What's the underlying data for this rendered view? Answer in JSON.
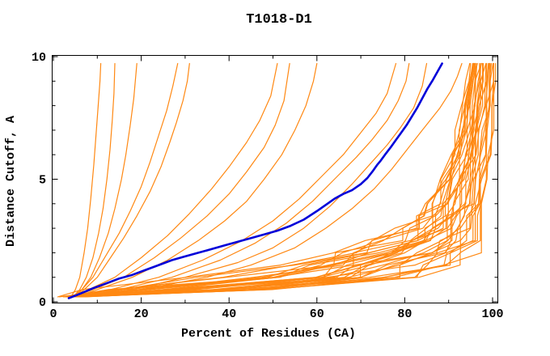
{
  "window": {
    "background": "#ffffff"
  },
  "chart_data": {
    "type": "line",
    "title": "T1018-D1",
    "xlabel": "Percent of Residues (CA)",
    "ylabel": "Distance Cutoff, A",
    "xlim": [
      0,
      101.3
    ],
    "ylim": [
      0,
      10.07
    ],
    "grid": "off",
    "legend": "none",
    "x_axis": {
      "major_ticks": [
        0,
        20,
        40,
        60,
        80,
        100
      ],
      "major_labels": [
        "0",
        "20",
        "40",
        "60",
        "80",
        "100"
      ],
      "minor_ticks": [
        10,
        30,
        50,
        70,
        90
      ]
    },
    "y_axis": {
      "major_ticks": [
        0,
        5,
        10
      ],
      "major_labels": [
        "0",
        "5",
        "10"
      ],
      "minor_ticks": [
        1,
        2,
        3,
        4,
        6,
        7,
        8,
        9
      ]
    },
    "colors": {
      "models": "#ff8812",
      "highlighted_model": "#0000d9",
      "axis": "#000000"
    },
    "highlighted_curve": {
      "name": "best-model-curve",
      "color": "blue",
      "points": [
        [
          3.5,
          0.15
        ],
        [
          5,
          0.25
        ],
        [
          7,
          0.4
        ],
        [
          9,
          0.55
        ],
        [
          12,
          0.75
        ],
        [
          15,
          0.95
        ],
        [
          18,
          1.1
        ],
        [
          21,
          1.3
        ],
        [
          24,
          1.5
        ],
        [
          27,
          1.7
        ],
        [
          30,
          1.85
        ],
        [
          33,
          2.0
        ],
        [
          36,
          2.15
        ],
        [
          39,
          2.3
        ],
        [
          42,
          2.45
        ],
        [
          45,
          2.6
        ],
        [
          48,
          2.75
        ],
        [
          51,
          2.9
        ],
        [
          54,
          3.1
        ],
        [
          57,
          3.35
        ],
        [
          60,
          3.7
        ],
        [
          62,
          3.95
        ],
        [
          64,
          4.2
        ],
        [
          66,
          4.4
        ],
        [
          68,
          4.55
        ],
        [
          70,
          4.8
        ],
        [
          71.5,
          5.05
        ],
        [
          72.8,
          5.35
        ],
        [
          73.8,
          5.6
        ],
        [
          74.5,
          5.75
        ],
        [
          75.5,
          6.0
        ],
        [
          76.8,
          6.3
        ],
        [
          78,
          6.6
        ],
        [
          79.2,
          6.9
        ],
        [
          80.4,
          7.2
        ],
        [
          81.6,
          7.55
        ],
        [
          82.8,
          7.9
        ],
        [
          84,
          8.3
        ],
        [
          85.2,
          8.7
        ],
        [
          86.4,
          9.05
        ],
        [
          87.5,
          9.4
        ],
        [
          88.5,
          9.72
        ]
      ]
    },
    "model_curves": [
      {
        "points": [
          [
            4,
            0.2
          ],
          [
            5,
            0.5
          ],
          [
            6,
            1
          ],
          [
            7,
            2
          ],
          [
            7.8,
            3
          ],
          [
            8.5,
            4.2
          ],
          [
            9.2,
            5.6
          ],
          [
            9.7,
            6.8
          ],
          [
            10.2,
            8
          ],
          [
            10.6,
            9
          ],
          [
            10.8,
            9.72
          ]
        ]
      },
      {
        "points": [
          [
            4.5,
            0.2
          ],
          [
            6,
            0.5
          ],
          [
            7.5,
            1
          ],
          [
            9,
            1.8
          ],
          [
            10.3,
            2.8
          ],
          [
            11.3,
            3.8
          ],
          [
            12.2,
            5
          ],
          [
            12.9,
            6.2
          ],
          [
            13.4,
            7.4
          ],
          [
            13.8,
            8.5
          ],
          [
            14,
            9.72
          ]
        ]
      },
      {
        "points": [
          [
            5,
            0.2
          ],
          [
            6.5,
            0.5
          ],
          [
            8.5,
            1
          ],
          [
            10.5,
            1.8
          ],
          [
            12.5,
            2.8
          ],
          [
            14,
            3.8
          ],
          [
            15.5,
            5
          ],
          [
            16.5,
            6
          ],
          [
            17.5,
            7.2
          ],
          [
            18.3,
            8.3
          ],
          [
            19,
            9.72
          ]
        ]
      },
      {
        "points": [
          [
            4.5,
            0.2
          ],
          [
            6.5,
            0.5
          ],
          [
            9,
            1
          ],
          [
            12,
            1.9
          ],
          [
            15,
            2.8
          ],
          [
            17.5,
            3.7
          ],
          [
            20,
            4.7
          ],
          [
            22,
            5.7
          ],
          [
            24,
            6.8
          ],
          [
            25.8,
            7.8
          ],
          [
            27.2,
            8.8
          ],
          [
            28.3,
            9.72
          ]
        ]
      },
      {
        "points": [
          [
            5,
            0.2
          ],
          [
            7,
            0.5
          ],
          [
            10,
            1
          ],
          [
            13,
            1.8
          ],
          [
            16,
            2.6
          ],
          [
            19,
            3.5
          ],
          [
            22,
            4.5
          ],
          [
            24.5,
            5.5
          ],
          [
            26.5,
            6.5
          ],
          [
            28,
            7.3
          ],
          [
            29.5,
            8.2
          ],
          [
            30.5,
            9
          ],
          [
            31,
            9.72
          ]
        ]
      },
      {
        "points": [
          [
            4,
            0.2
          ],
          [
            8,
            0.5
          ],
          [
            14,
            1
          ],
          [
            20,
            1.8
          ],
          [
            26,
            2.7
          ],
          [
            31,
            3.6
          ],
          [
            36,
            4.6
          ],
          [
            40,
            5.5
          ],
          [
            44,
            6.5
          ],
          [
            47,
            7.4
          ],
          [
            49.5,
            8.4
          ],
          [
            51,
            9.72
          ]
        ]
      },
      {
        "points": [
          [
            4.5,
            0.2
          ],
          [
            9,
            0.5
          ],
          [
            16,
            1
          ],
          [
            23,
            1.8
          ],
          [
            29,
            2.6
          ],
          [
            35,
            3.5
          ],
          [
            40,
            4.4
          ],
          [
            44,
            5.3
          ],
          [
            48,
            6.3
          ],
          [
            50.5,
            7.2
          ],
          [
            52.5,
            8.2
          ],
          [
            53.8,
            9.72
          ]
        ]
      },
      {
        "points": [
          [
            5,
            0.2
          ],
          [
            10,
            0.5
          ],
          [
            18,
            1
          ],
          [
            26,
            1.7
          ],
          [
            33,
            2.5
          ],
          [
            39,
            3.3
          ],
          [
            44,
            4.1
          ],
          [
            48,
            5
          ],
          [
            52,
            6
          ],
          [
            55,
            7
          ],
          [
            57.5,
            8
          ],
          [
            59.2,
            9
          ],
          [
            60,
            9.72
          ]
        ]
      },
      {
        "points": [
          [
            5.5,
            0.2
          ],
          [
            13,
            0.5
          ],
          [
            24,
            1
          ],
          [
            34,
            1.7
          ],
          [
            43,
            2.5
          ],
          [
            50,
            3.3
          ],
          [
            56,
            4.2
          ],
          [
            61,
            5.1
          ],
          [
            66,
            6
          ],
          [
            70,
            6.9
          ],
          [
            73.5,
            7.7
          ],
          [
            76,
            8.5
          ],
          [
            78,
            9.72
          ]
        ]
      },
      {
        "points": [
          [
            6,
            0.2
          ],
          [
            15,
            0.5
          ],
          [
            27,
            1
          ],
          [
            38,
            1.7
          ],
          [
            46,
            2.4
          ],
          [
            53,
            3.2
          ],
          [
            59,
            4.1
          ],
          [
            64,
            5
          ],
          [
            69,
            5.9
          ],
          [
            72.5,
            6.6
          ],
          [
            76,
            7.4
          ],
          [
            78.5,
            8.2
          ],
          [
            80.3,
            9
          ],
          [
            81,
            9.72
          ]
        ]
      },
      {
        "points": [
          [
            5,
            0.2
          ],
          [
            18,
            0.5
          ],
          [
            30,
            1
          ],
          [
            42,
            1.6
          ],
          [
            50,
            2.2
          ],
          [
            57,
            3
          ],
          [
            63,
            3.9
          ],
          [
            68,
            4.8
          ],
          [
            72,
            5.6
          ],
          [
            76,
            6.4
          ],
          [
            79,
            7.1
          ],
          [
            82,
            7.9
          ],
          [
            84,
            8.8
          ],
          [
            85,
            9.72
          ]
        ]
      },
      {
        "points": [
          [
            6,
            0.2
          ],
          [
            20,
            0.5
          ],
          [
            35,
            1
          ],
          [
            45,
            1.5
          ],
          [
            55,
            2.2
          ],
          [
            62,
            3
          ],
          [
            68,
            3.8
          ],
          [
            73,
            4.6
          ],
          [
            77,
            5.4
          ],
          [
            80.5,
            6.2
          ],
          [
            84,
            7
          ],
          [
            88,
            7.9
          ],
          [
            90.5,
            8.6
          ],
          [
            92,
            9.2
          ],
          [
            93,
            9.72
          ]
        ]
      }
    ],
    "bundle": {
      "description": "dense band of similar model curves hugging the lower right",
      "count": 34,
      "color": "orange",
      "cutoffs": [
        0.2,
        0.5,
        1,
        1.5,
        2,
        2.5,
        3,
        3.5,
        4,
        5,
        6,
        7,
        8,
        9,
        9.72
      ],
      "x_best": [
        6,
        50,
        84,
        90,
        93,
        94.5,
        95.5,
        96.3,
        97,
        98,
        98.7,
        99.3,
        99.9,
        100.3,
        100.6
      ],
      "x_worst": [
        2.5,
        11,
        38,
        55,
        67,
        75,
        80,
        83,
        85.5,
        88.5,
        90.3,
        91.8,
        93.2,
        94.2,
        94.8
      ],
      "jitter": [
        1.5,
        7,
        8,
        7,
        5.5,
        4.5,
        3.5,
        3,
        2.5,
        2,
        1.6,
        1.3,
        1,
        0.8,
        0.8
      ]
    }
  }
}
